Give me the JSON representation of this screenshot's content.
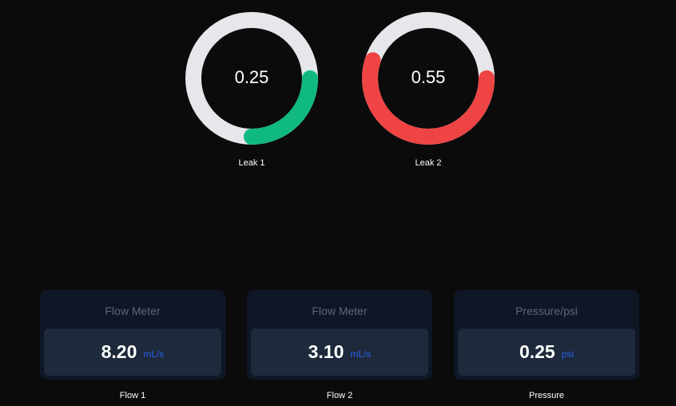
{
  "gauges": [
    {
      "value": 0.25,
      "label": "Leak 1",
      "color": "#10b981"
    },
    {
      "value": 0.55,
      "label": "Leak 2",
      "color": "#ef4444"
    }
  ],
  "cards": [
    {
      "title": "Flow Meter",
      "value": "8.20",
      "unit": "mL/s",
      "caption": "Flow 1"
    },
    {
      "title": "Flow Meter",
      "value": "3.10",
      "unit": "mL/s",
      "caption": "Flow 2"
    },
    {
      "title": "Pressure/psi",
      "value": "0.25",
      "unit": "psi",
      "caption": "Pressure"
    }
  ]
}
